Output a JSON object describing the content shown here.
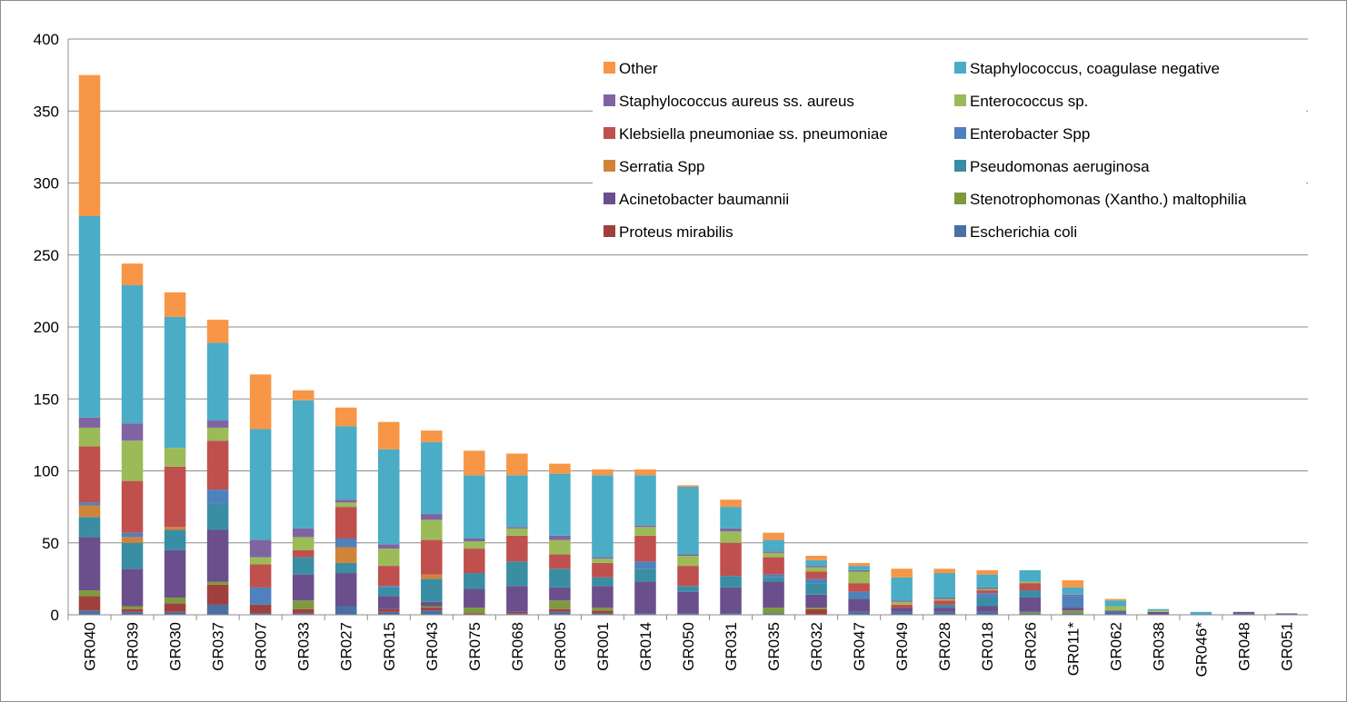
{
  "chart_data": {
    "type": "bar",
    "stacked": true,
    "grid": true,
    "legend_position": "top-right",
    "ylim": [
      0,
      400
    ],
    "yticks": [
      0,
      50,
      100,
      150,
      200,
      250,
      300,
      350,
      400
    ],
    "categories": [
      "GR040",
      "GR039",
      "GR030",
      "GR037",
      "GR007",
      "GR033",
      "GR027",
      "GR015",
      "GR043",
      "GR075",
      "GR068",
      "GR005",
      "GR001",
      "GR014",
      "GR050",
      "GR031",
      "GR035",
      "GR032",
      "GR047",
      "GR049",
      "GR028",
      "GR018",
      "GR026",
      "GR011*",
      "GR062",
      "GR038",
      "GR046*",
      "GR048",
      "GR051"
    ],
    "series": [
      {
        "name": "Escherichia coli",
        "color": "#4a6fa5",
        "values": [
          3,
          2,
          2,
          7,
          1,
          1,
          6,
          2,
          3,
          0,
          1,
          2,
          1,
          1,
          1,
          1,
          1,
          0,
          2,
          2,
          2,
          2,
          1,
          1,
          2,
          0,
          0,
          1,
          0
        ]
      },
      {
        "name": "Proteus mirabilis",
        "color": "#a0403d",
        "values": [
          10,
          2,
          6,
          14,
          6,
          3,
          0,
          2,
          2,
          1,
          1,
          2,
          2,
          0,
          0,
          0,
          0,
          4,
          0,
          0,
          0,
          0,
          0,
          0,
          0,
          0,
          0,
          0,
          0
        ]
      },
      {
        "name": "Stenotrophomonas (Xantho.) maltophilia",
        "color": "#7e9a3f",
        "values": [
          4,
          2,
          4,
          2,
          0,
          6,
          0,
          0,
          1,
          4,
          0,
          6,
          2,
          0,
          0,
          0,
          4,
          1,
          0,
          0,
          0,
          0,
          1,
          2,
          0,
          0,
          0,
          0,
          0
        ]
      },
      {
        "name": "Acinetobacter baumannii",
        "color": "#6a4f8c",
        "values": [
          37,
          26,
          33,
          36,
          0,
          18,
          23,
          9,
          3,
          13,
          18,
          9,
          15,
          22,
          15,
          18,
          18,
          9,
          9,
          3,
          3,
          4,
          10,
          2,
          1,
          2,
          0,
          1,
          1
        ]
      },
      {
        "name": "Pseudomonas aeruginosa",
        "color": "#3a8ea3",
        "values": [
          14,
          18,
          14,
          18,
          0,
          12,
          7,
          6,
          16,
          11,
          17,
          13,
          6,
          9,
          4,
          8,
          3,
          8,
          1,
          0,
          2,
          6,
          5,
          0,
          0,
          0,
          0,
          0,
          0
        ]
      },
      {
        "name": "Serratia Spp",
        "color": "#d0843a",
        "values": [
          8,
          4,
          2,
          0,
          0,
          0,
          11,
          0,
          3,
          0,
          0,
          0,
          0,
          0,
          0,
          0,
          0,
          0,
          0,
          0,
          0,
          0,
          0,
          0,
          0,
          0,
          0,
          0,
          0
        ]
      },
      {
        "name": "Enterobacter Spp",
        "color": "#4f81bd",
        "values": [
          2,
          3,
          0,
          10,
          12,
          0,
          6,
          1,
          0,
          0,
          0,
          0,
          0,
          5,
          0,
          0,
          2,
          3,
          4,
          0,
          0,
          3,
          0,
          8,
          0,
          0,
          0,
          0,
          0
        ]
      },
      {
        "name": "Klebsiella pneumoniae ss. pneumoniae",
        "color": "#c0504d",
        "values": [
          39,
          36,
          42,
          34,
          16,
          5,
          22,
          14,
          24,
          17,
          18,
          10,
          10,
          18,
          14,
          23,
          12,
          5,
          6,
          2,
          3,
          2,
          5,
          0,
          0,
          0,
          0,
          0,
          0
        ]
      },
      {
        "name": "Enterococcus sp.",
        "color": "#9bbb59",
        "values": [
          13,
          28,
          13,
          9,
          5,
          9,
          3,
          12,
          14,
          5,
          5,
          10,
          3,
          6,
          7,
          8,
          3,
          3,
          8,
          2,
          1,
          1,
          1,
          0,
          3,
          1,
          0,
          0,
          0
        ]
      },
      {
        "name": "Staphylococcus aureus ss. aureus",
        "color": "#8064a2",
        "values": [
          7,
          12,
          0,
          5,
          12,
          6,
          2,
          3,
          4,
          2,
          1,
          3,
          1,
          1,
          1,
          2,
          1,
          1,
          1,
          1,
          1,
          1,
          0,
          1,
          0,
          0,
          0,
          0,
          0
        ]
      },
      {
        "name": "Staphylococcus, coagulase negative",
        "color": "#4bacc6",
        "values": [
          140,
          96,
          91,
          54,
          77,
          89,
          51,
          66,
          50,
          44,
          36,
          43,
          57,
          35,
          47,
          15,
          8,
          4,
          3,
          16,
          17,
          9,
          8,
          5,
          4,
          1,
          2,
          0,
          0
        ]
      },
      {
        "name": "Other",
        "color": "#f79646",
        "values": [
          98,
          15,
          17,
          16,
          38,
          7,
          13,
          19,
          8,
          17,
          15,
          7,
          4,
          4,
          1,
          5,
          5,
          3,
          2,
          6,
          3,
          3,
          0,
          5,
          1,
          0,
          0,
          0,
          0
        ]
      }
    ],
    "legend_order": [
      "Other",
      "Staphylococcus, coagulase negative",
      "Staphylococcus aureus ss. aureus",
      "Enterococcus sp.",
      "Klebsiella pneumoniae ss. pneumoniae",
      "Enterobacter Spp",
      "Serratia Spp",
      "Pseudomonas aeruginosa",
      "Acinetobacter baumannii",
      "Stenotrophomonas (Xantho.) maltophilia",
      "Proteus mirabilis",
      "Escherichia coli"
    ],
    "gridline_color": "#8c8c8c"
  }
}
